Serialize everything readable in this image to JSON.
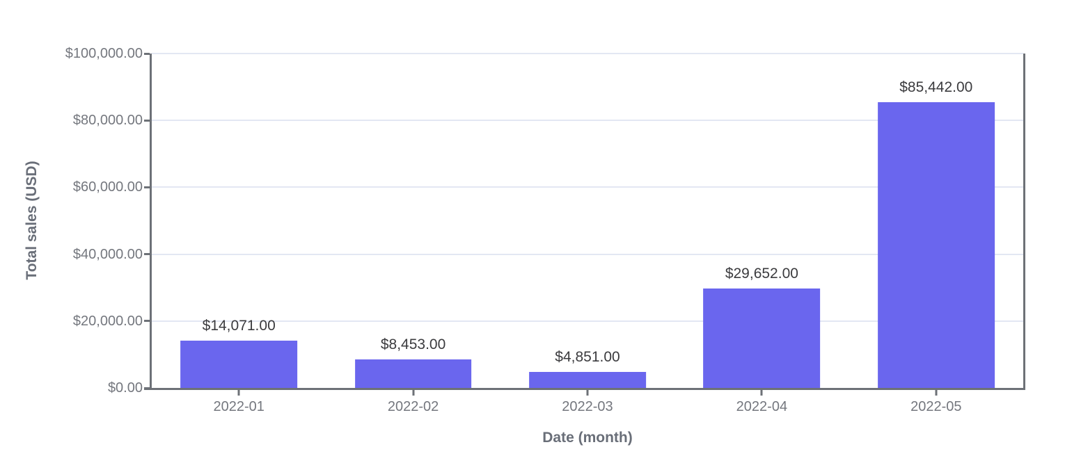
{
  "chart_data": {
    "type": "bar",
    "title": "",
    "categories": [
      "2022-01",
      "2022-02",
      "2022-03",
      "2022-04",
      "2022-05"
    ],
    "values": [
      14071,
      8453,
      4851,
      29652,
      85442
    ],
    "bar_labels": [
      "$14,071.00",
      "$8,453.00",
      "$4,851.00",
      "$29,652.00",
      "$85,442.00"
    ],
    "xlabel": "Date (month)",
    "ylabel": "Total sales (USD)",
    "ylim": [
      0,
      100000
    ],
    "ytick_interval": 20000,
    "ytick_labels": [
      "$0.00",
      "$20,000.00",
      "$40,000.00",
      "$60,000.00",
      "$80,000.00",
      "$100,000.00"
    ],
    "grid": "horizontal",
    "legend": "none",
    "colors": {
      "bar": "#6a66ee",
      "axis": "#6d7177",
      "gridline": "#e3e7f3",
      "tick_label": "#74777e",
      "axis_title": "#696e78",
      "data_label": "#3b3b3e"
    }
  }
}
